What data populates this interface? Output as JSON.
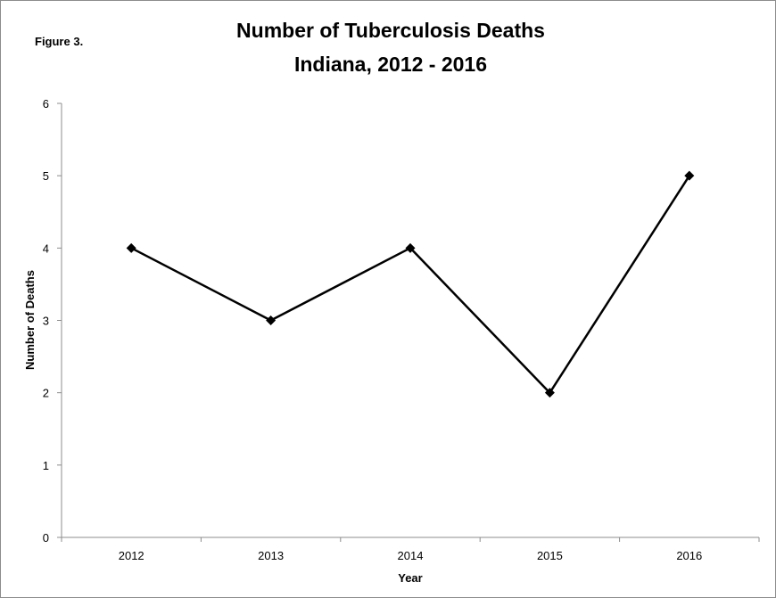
{
  "figure_label": "Figure 3.",
  "chart_data": {
    "type": "line",
    "title": "Number of Tuberculosis Deaths",
    "subtitle": "Indiana, 2012 - 2016",
    "xlabel": "Year",
    "ylabel": "Number of Deaths",
    "categories": [
      "2012",
      "2013",
      "2014",
      "2015",
      "2016"
    ],
    "series": [
      {
        "values": [
          4,
          3,
          4,
          2,
          5
        ],
        "color": "#000000",
        "marker": "diamond"
      }
    ],
    "ylim": [
      0,
      6
    ],
    "yticks": [
      0,
      1,
      2,
      3,
      4,
      5,
      6
    ],
    "grid": false,
    "legend": "none"
  }
}
